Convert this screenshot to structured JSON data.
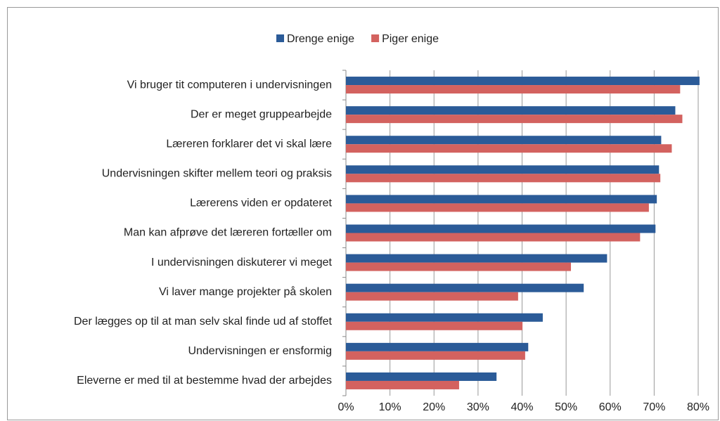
{
  "chart_data": {
    "type": "barh",
    "categories": [
      "Vi bruger tit computeren i undervisningen",
      "Der er meget gruppearbejde",
      "Læreren forklarer det vi skal lære",
      "Undervisningen skifter mellem teori og praksis",
      "Lærerens viden er opdateret",
      "Man kan afprøve det læreren fortæller om",
      "I undervisningen diskuterer vi meget",
      "Vi laver mange projekter på skolen",
      "Der lægges op til at man selv skal finde ud af stoffet",
      "Undervisningen er ensformig",
      "Eleverne er med til at bestemme hvad der arbejdes"
    ],
    "series": [
      {
        "name": "Drenge enige",
        "color": "#2b5b98",
        "values": [
          80.3,
          74.8,
          71.6,
          71.1,
          70.6,
          70.3,
          59.3,
          54,
          44.7,
          41.4,
          34.2
        ]
      },
      {
        "name": "Piger enige",
        "color": "#d3625f",
        "values": [
          75.9,
          76.4,
          74,
          71.4,
          68.8,
          66.8,
          51.1,
          39.1,
          40.1,
          40.7,
          25.7
        ]
      }
    ],
    "xlim": [
      0,
      80
    ],
    "xticks": [
      {
        "value": 0,
        "label": "0%"
      },
      {
        "value": 10,
        "label": "10%"
      },
      {
        "value": 20,
        "label": "20%"
      },
      {
        "value": 30,
        "label": "30%"
      },
      {
        "value": 40,
        "label": "40%"
      },
      {
        "value": 50,
        "label": "50%"
      },
      {
        "value": 60,
        "label": "60%"
      },
      {
        "value": 70,
        "label": "70%"
      },
      {
        "value": 80,
        "label": "80%"
      }
    ],
    "grid": true,
    "legend": "top"
  }
}
